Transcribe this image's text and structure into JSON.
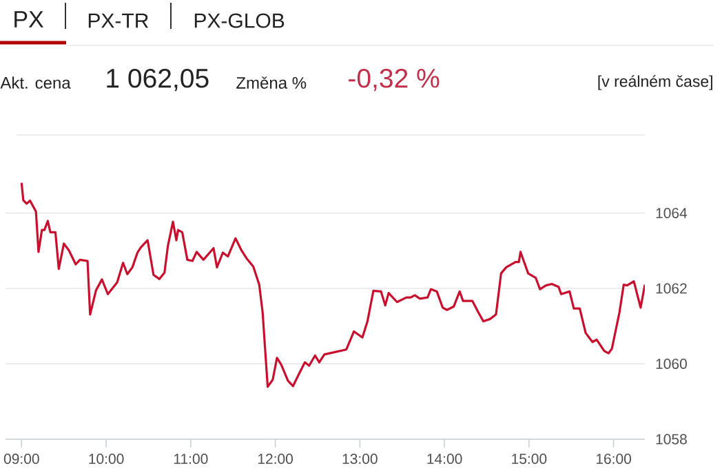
{
  "chart_data": {
    "type": "line",
    "title": "PX",
    "annotations": [
      "PX-TR",
      "PX-GLOB",
      "Akt. cena",
      "1 062,05",
      "Změna %",
      "-0,32 %",
      "[v reálném čase]"
    ],
    "x": [
      9.0,
      9.02,
      9.06,
      9.1,
      9.17,
      9.2,
      9.24,
      9.27,
      9.31,
      9.34,
      9.4,
      9.44,
      9.5,
      9.56,
      9.64,
      9.69,
      9.78,
      9.81,
      9.88,
      9.95,
      10.02,
      10.13,
      10.2,
      10.25,
      10.31,
      10.37,
      10.41,
      10.49,
      10.56,
      10.63,
      10.69,
      10.73,
      10.79,
      10.83,
      10.85,
      10.9,
      10.96,
      11.02,
      11.07,
      11.15,
      11.27,
      11.31,
      11.38,
      11.44,
      11.53,
      11.6,
      11.66,
      11.74,
      11.81,
      11.85,
      11.91,
      11.97,
      12.02,
      12.07,
      12.15,
      12.21,
      12.28,
      12.35,
      12.4,
      12.47,
      12.52,
      12.58,
      12.68,
      12.84,
      12.93,
      13.03,
      13.09,
      13.16,
      13.25,
      13.3,
      13.34,
      13.44,
      13.55,
      13.6,
      13.65,
      13.71,
      13.8,
      13.84,
      13.91,
      13.98,
      14.03,
      14.11,
      14.18,
      14.22,
      14.33,
      14.4,
      14.46,
      14.54,
      14.61,
      14.67,
      14.73,
      14.84,
      14.88,
      14.9,
      14.99,
      15.08,
      15.13,
      15.2,
      15.27,
      15.35,
      15.38,
      15.48,
      15.53,
      15.6,
      15.67,
      15.75,
      15.8,
      15.89,
      15.94,
      15.98,
      16.07,
      16.12,
      16.16,
      16.24,
      16.32,
      16.37
    ],
    "series": [
      {
        "color": "#c8102e",
        "values": [
          1064.8,
          1064.34,
          1064.25,
          1064.33,
          1064.04,
          1062.97,
          1063.55,
          1063.55,
          1063.79,
          1063.49,
          1063.49,
          1062.52,
          1063.19,
          1063.01,
          1062.64,
          1062.76,
          1062.73,
          1061.31,
          1061.95,
          1062.24,
          1061.85,
          1062.16,
          1062.68,
          1062.38,
          1062.56,
          1062.95,
          1063.09,
          1063.28,
          1062.36,
          1062.25,
          1062.42,
          1063.13,
          1063.77,
          1063.28,
          1063.55,
          1063.49,
          1062.76,
          1062.73,
          1062.97,
          1062.76,
          1063.07,
          1062.56,
          1062.95,
          1062.85,
          1063.33,
          1063.01,
          1062.8,
          1062.58,
          1062.1,
          1061.37,
          1059.39,
          1059.58,
          1060.16,
          1059.98,
          1059.55,
          1059.41,
          1059.73,
          1060.04,
          1059.95,
          1060.22,
          1060.04,
          1060.25,
          1060.3,
          1060.38,
          1060.86,
          1060.7,
          1061.13,
          1061.94,
          1061.92,
          1061.55,
          1061.88,
          1061.64,
          1061.76,
          1061.76,
          1061.82,
          1061.73,
          1061.76,
          1061.98,
          1061.92,
          1061.49,
          1061.43,
          1061.52,
          1061.92,
          1061.67,
          1061.67,
          1061.37,
          1061.13,
          1061.19,
          1061.31,
          1062.4,
          1062.56,
          1062.7,
          1062.7,
          1062.97,
          1062.4,
          1062.28,
          1061.98,
          1062.08,
          1062.12,
          1062.04,
          1061.85,
          1061.92,
          1061.47,
          1061.47,
          1060.82,
          1060.58,
          1060.64,
          1060.34,
          1060.28,
          1060.4,
          1061.37,
          1062.1,
          1062.08,
          1062.19,
          1061.49,
          1062.1
        ]
      }
    ],
    "xlim": [
      8.81,
      16.37
    ],
    "xticks": [
      {
        "value": 9,
        "label": "09:00"
      },
      {
        "value": 10,
        "label": "10:00"
      },
      {
        "value": 11,
        "label": "11:00"
      },
      {
        "value": 12,
        "label": "12:00"
      },
      {
        "value": 13,
        "label": "13:00"
      },
      {
        "value": 14,
        "label": "14:00"
      },
      {
        "value": 15,
        "label": "15:00"
      },
      {
        "value": 16,
        "label": "16:00"
      }
    ],
    "ylim": [
      1058,
      1066
    ],
    "yticks": [
      1058,
      1060,
      1062,
      1064
    ],
    "grid": "y"
  }
}
